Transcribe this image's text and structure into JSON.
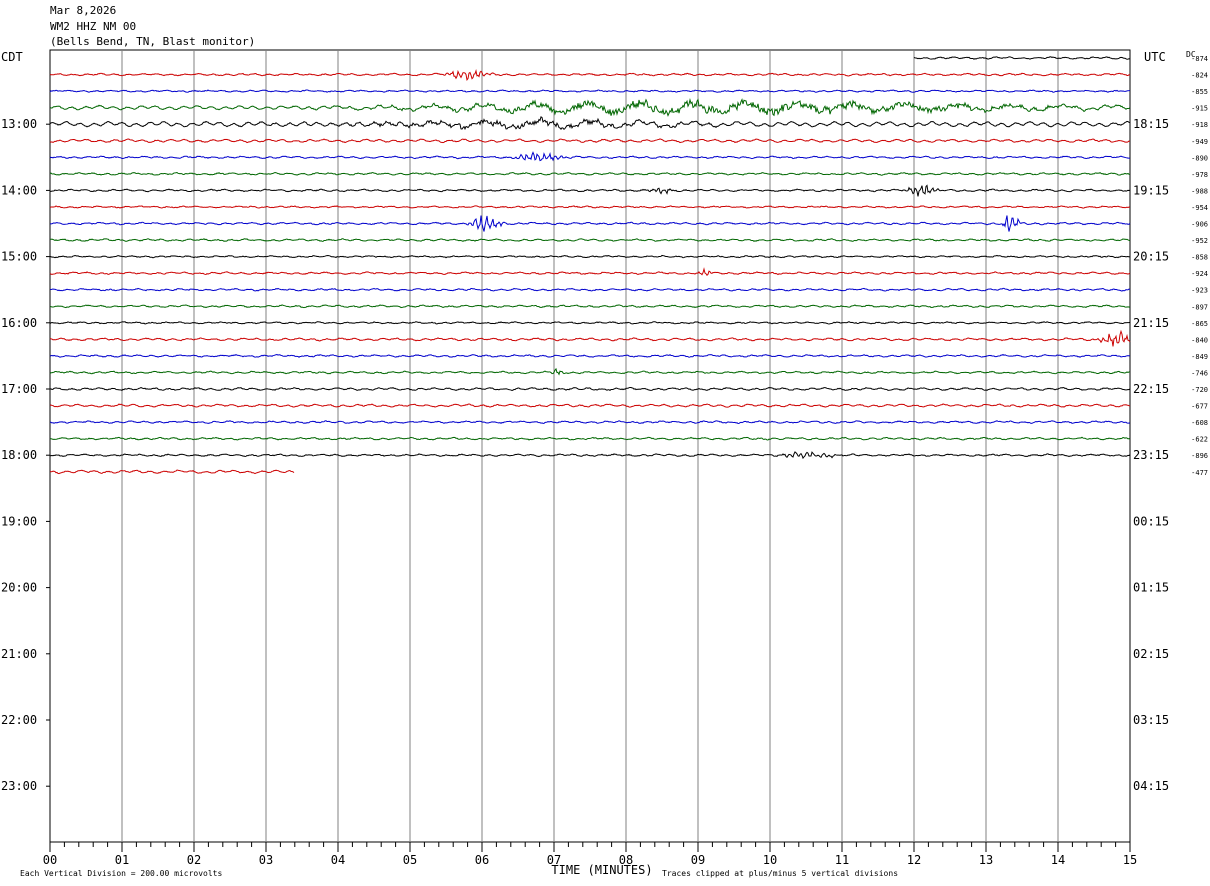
{
  "header": {
    "date": "Mar 8,2026",
    "station": "WM2 HHZ NM 00",
    "location": "(Bells Bend, TN, Blast monitor)"
  },
  "chart_data": {
    "type": "line",
    "title": "",
    "left_axis_label": "CDT",
    "right_axis_label": "UTC",
    "dc_label": "DC",
    "xlabel": "TIME (MINUTES)",
    "x_ticks": [
      "00",
      "01",
      "02",
      "03",
      "04",
      "05",
      "06",
      "07",
      "08",
      "09",
      "10",
      "11",
      "12",
      "13",
      "14",
      "15"
    ],
    "xlim": [
      0,
      15
    ],
    "left_hour_labels": [
      "13:00",
      "14:00",
      "15:00",
      "16:00",
      "17:00",
      "18:00",
      "19:00",
      "20:00",
      "21:00",
      "22:00",
      "23:00"
    ],
    "right_hour_labels": [
      "18:15",
      "19:15",
      "20:15",
      "21:15",
      "22:15",
      "23:15",
      "00:15",
      "01:15",
      "02:15",
      "03:15",
      "04:15"
    ],
    "scale_note": "Each Vertical Division =  200.00 microvolts",
    "clip_note": "Traces clipped at plus/minus 5 vertical divisions",
    "trace_colors": [
      "#000000",
      "#cc0000",
      "#0000cc",
      "#006600"
    ],
    "traces": [
      {
        "dc": "-874",
        "start_min": 12.0,
        "end_min": 15,
        "amp": 1.0,
        "events": []
      },
      {
        "dc": "-824",
        "start_min": 0,
        "end_min": 15,
        "amp": 1.0,
        "events": [
          {
            "t": 5.8,
            "a": 3,
            "w": 0.35
          }
        ]
      },
      {
        "dc": "-855",
        "start_min": 0,
        "end_min": 15,
        "amp": 0.8,
        "events": []
      },
      {
        "dc": "-915",
        "start_min": 0,
        "end_min": 15,
        "amp": 2.0,
        "events": [
          {
            "t": 9.5,
            "a": 5,
            "w": 5.5
          }
        ]
      },
      {
        "dc": "-918",
        "start_min": 0,
        "end_min": 15,
        "amp": 2.5,
        "events": [
          {
            "t": 6.5,
            "a": 3,
            "w": 3
          }
        ]
      },
      {
        "dc": "-949",
        "start_min": 0,
        "end_min": 15,
        "amp": 1.5,
        "events": []
      },
      {
        "dc": "-890",
        "start_min": 0,
        "end_min": 15,
        "amp": 1.0,
        "events": [
          {
            "t": 6.8,
            "a": 3,
            "w": 0.4
          }
        ]
      },
      {
        "dc": "-978",
        "start_min": 0,
        "end_min": 15,
        "amp": 1.0,
        "events": []
      },
      {
        "dc": "-988",
        "start_min": 0,
        "end_min": 15,
        "amp": 1.0,
        "events": [
          {
            "t": 12.1,
            "a": 4,
            "w": 0.25
          },
          {
            "t": 8.5,
            "a": 2,
            "w": 0.2
          }
        ]
      },
      {
        "dc": "-954",
        "start_min": 0,
        "end_min": 15,
        "amp": 0.8,
        "events": []
      },
      {
        "dc": "-906",
        "start_min": 0,
        "end_min": 15,
        "amp": 1.0,
        "events": [
          {
            "t": 6.05,
            "a": 6,
            "w": 0.25
          },
          {
            "t": 13.35,
            "a": 9,
            "w": 0.12
          }
        ]
      },
      {
        "dc": "-952",
        "start_min": 0,
        "end_min": 15,
        "amp": 1.0,
        "events": []
      },
      {
        "dc": "-858",
        "start_min": 0,
        "end_min": 15,
        "amp": 0.8,
        "events": []
      },
      {
        "dc": "-924",
        "start_min": 0,
        "end_min": 15,
        "amp": 1.0,
        "events": [
          {
            "t": 9.1,
            "a": 3,
            "w": 0.1
          }
        ]
      },
      {
        "dc": "-923",
        "start_min": 0,
        "end_min": 15,
        "amp": 1.0,
        "events": []
      },
      {
        "dc": "-897",
        "start_min": 0,
        "end_min": 15,
        "amp": 1.0,
        "events": []
      },
      {
        "dc": "-865",
        "start_min": 0,
        "end_min": 15,
        "amp": 0.8,
        "events": []
      },
      {
        "dc": "-840",
        "start_min": 0,
        "end_min": 15,
        "amp": 1.2,
        "events": [
          {
            "t": 14.8,
            "a": 5,
            "w": 0.25
          }
        ]
      },
      {
        "dc": "-849",
        "start_min": 0,
        "end_min": 15,
        "amp": 1.0,
        "events": []
      },
      {
        "dc": "-746",
        "start_min": 0,
        "end_min": 15,
        "amp": 1.0,
        "events": [
          {
            "t": 7.05,
            "a": 3,
            "w": 0.1
          }
        ]
      },
      {
        "dc": "-720",
        "start_min": 0,
        "end_min": 15,
        "amp": 1.2,
        "events": []
      },
      {
        "dc": "-677",
        "start_min": 0,
        "end_min": 15,
        "amp": 1.3,
        "events": []
      },
      {
        "dc": "-608",
        "start_min": 0,
        "end_min": 15,
        "amp": 1.0,
        "events": []
      },
      {
        "dc": "-622",
        "start_min": 0,
        "end_min": 15,
        "amp": 1.0,
        "events": []
      },
      {
        "dc": "-896",
        "start_min": 0,
        "end_min": 15,
        "amp": 1.0,
        "events": [
          {
            "t": 10.5,
            "a": 2,
            "w": 0.5
          }
        ]
      },
      {
        "dc": "-477",
        "start_min": 0,
        "end_min": 3.4,
        "amp": 1.5,
        "events": []
      }
    ]
  }
}
